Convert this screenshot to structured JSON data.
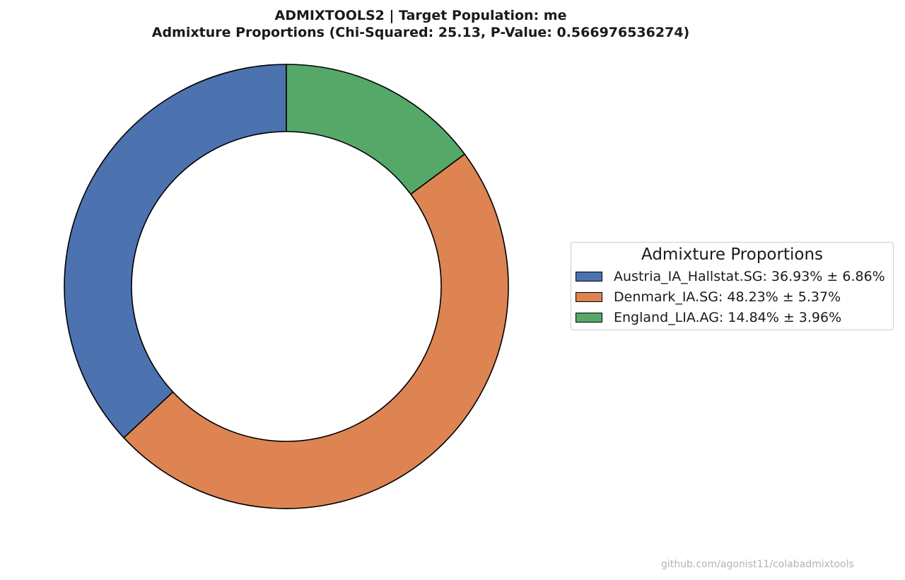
{
  "chart_data": {
    "type": "pie",
    "title": "ADMIXTOOLS2 | Target Population: me",
    "subtitle": "Admixture Proportions (Chi-Squared: 25.13, P-Value: 0.566976536274)",
    "legend_title": "Admixture Proportions",
    "legend_placement": "right",
    "donut": true,
    "series": [
      {
        "name": "Austria_IA_Hallstat.SG",
        "value": 36.93,
        "error": 6.86,
        "color": "#4c72b0",
        "label": "Austria_IA_Hallstat.SG: 36.93% ± 6.86%"
      },
      {
        "name": "Denmark_IA.SG",
        "value": 48.23,
        "error": 5.37,
        "color": "#dd8452",
        "label": "Denmark_IA.SG: 48.23% ± 5.37%"
      },
      {
        "name": "England_LIA.AG",
        "value": 14.84,
        "error": 3.96,
        "color": "#55a868",
        "label": "England_LIA.AG: 14.84% ± 3.96%"
      }
    ]
  },
  "watermark": "github.com/agonist11/colabadmixtools"
}
